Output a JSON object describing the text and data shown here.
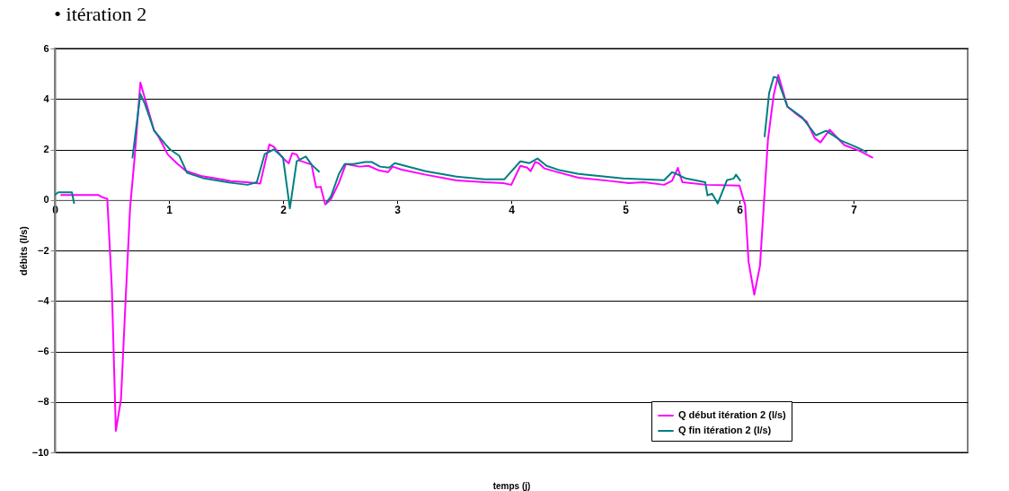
{
  "chart_data": {
    "type": "line",
    "title": "• itération 2",
    "xlabel": "temps (j)",
    "ylabel": "débits (l/s)",
    "xlim": [
      0,
      8
    ],
    "xticks": [
      0,
      1,
      2,
      3,
      4,
      5,
      6,
      7
    ],
    "ylim": [
      -10,
      6
    ],
    "yticks": [
      -10,
      -8,
      -6,
      -4,
      -2,
      0,
      2,
      4,
      6
    ],
    "grid": "y",
    "legend": "bottom right",
    "marker": "none",
    "line_style": "solid",
    "series": [
      {
        "name": "Q début itération 2 (l/s)",
        "color": "#ff00ff",
        "x": [
          0.05,
          0.38,
          0.42,
          0.46,
          0.5,
          0.535,
          0.58,
          0.62,
          0.66,
          0.7,
          0.75,
          0.81,
          0.87,
          0.91,
          0.99,
          1.07,
          1.15,
          1.28,
          1.41,
          1.54,
          1.68,
          1.8,
          1.88,
          1.92,
          1.99,
          2.05,
          2.08,
          2.12,
          2.15,
          2.25,
          2.29,
          2.33,
          2.37,
          2.42,
          2.49,
          2.55,
          2.67,
          2.75,
          2.84,
          2.92,
          2.96,
          3.04,
          3.25,
          3.51,
          3.77,
          3.93,
          4.0,
          4.08,
          4.14,
          4.17,
          4.21,
          4.24,
          4.29,
          4.43,
          4.59,
          4.85,
          5.03,
          5.16,
          5.34,
          5.41,
          5.46,
          5.5,
          5.71,
          6.0,
          6.05,
          6.08,
          6.13,
          6.18,
          6.25,
          6.3,
          6.34,
          6.42,
          6.5,
          6.59,
          6.66,
          6.71,
          6.79,
          6.92,
          7.05,
          7.17
        ],
        "values": [
          0.2,
          0.2,
          0.1,
          0.05,
          -3.5,
          -9.15,
          -7.9,
          -4.0,
          -0.3,
          1.7,
          4.65,
          3.7,
          2.75,
          2.5,
          1.8,
          1.45,
          1.15,
          0.95,
          0.85,
          0.75,
          0.7,
          0.65,
          2.2,
          2.1,
          1.7,
          1.45,
          1.85,
          1.8,
          1.55,
          1.4,
          0.5,
          0.52,
          -0.18,
          0.03,
          0.68,
          1.42,
          1.32,
          1.35,
          1.17,
          1.1,
          1.32,
          1.2,
          1.0,
          0.78,
          0.7,
          0.67,
          0.6,
          1.35,
          1.28,
          1.14,
          1.5,
          1.46,
          1.25,
          1.07,
          0.88,
          0.76,
          0.67,
          0.7,
          0.6,
          0.76,
          1.27,
          0.7,
          0.6,
          0.57,
          -0.2,
          -2.45,
          -3.75,
          -2.6,
          2.4,
          4.15,
          4.95,
          3.7,
          3.4,
          3.1,
          2.45,
          2.28,
          2.78,
          2.17,
          1.95,
          1.67
        ]
      },
      {
        "name": "Q fin itération 2 (l/s)",
        "color": "#008080",
        "x": [
          0.0,
          0.03,
          0.15,
          0.17,
          0.4,
          0.68,
          0.75,
          0.79,
          0.87,
          0.97,
          1.01,
          1.09,
          1.16,
          1.31,
          1.54,
          1.69,
          1.77,
          1.84,
          1.92,
          2.0,
          2.06,
          2.12,
          2.2,
          2.25,
          2.32,
          2.35,
          2.38,
          2.42,
          2.49,
          2.54,
          2.62,
          2.72,
          2.78,
          2.85,
          2.93,
          2.98,
          3.25,
          3.51,
          3.77,
          3.94,
          4.08,
          4.16,
          4.23,
          4.31,
          4.43,
          4.59,
          4.98,
          5.34,
          5.41,
          5.45,
          5.53,
          5.7,
          5.72,
          5.76,
          5.81,
          5.89,
          5.95,
          5.97,
          6.01,
          6.1,
          6.22,
          6.26,
          6.3,
          6.33,
          6.42,
          6.55,
          6.67,
          6.76,
          6.89,
          7.02,
          7.12
        ],
        "values": [
          0.2,
          0.3,
          0.3,
          -0.15,
          null,
          1.65,
          4.2,
          3.8,
          2.75,
          2.2,
          2.0,
          1.75,
          1.07,
          0.85,
          0.68,
          0.6,
          0.7,
          1.82,
          2.0,
          1.68,
          -0.33,
          1.53,
          1.72,
          1.4,
          1.1,
          null,
          -0.1,
          0.14,
          1.03,
          1.42,
          1.42,
          1.5,
          1.5,
          1.32,
          1.28,
          1.46,
          1.14,
          0.93,
          0.82,
          0.82,
          1.53,
          1.46,
          1.64,
          1.35,
          1.17,
          1.03,
          0.85,
          0.78,
          1.1,
          1.03,
          0.85,
          0.7,
          0.18,
          0.25,
          -0.14,
          0.78,
          0.85,
          1.0,
          0.75,
          null,
          2.49,
          4.23,
          4.87,
          4.84,
          3.7,
          3.27,
          2.56,
          2.74,
          2.35,
          2.1,
          1.89
        ]
      }
    ]
  }
}
